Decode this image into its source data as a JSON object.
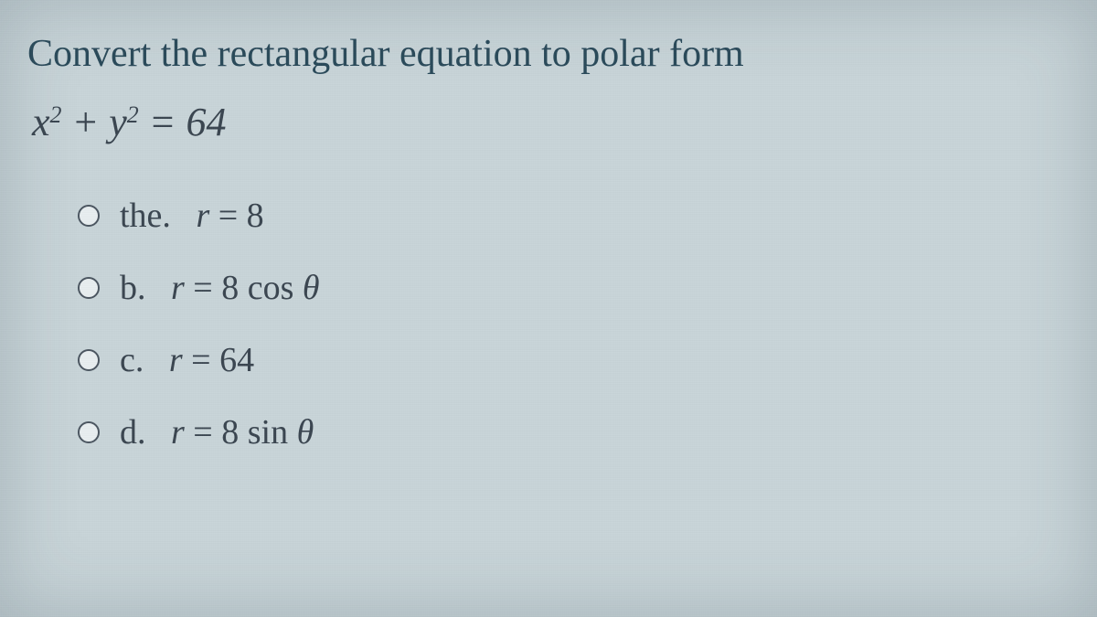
{
  "prompt": "Convert the rectangular equation to polar form",
  "equation_html": "<span class=\"math\">x</span><sup>2</sup> + <span class=\"math\">y</span><sup>2</sup> = 64",
  "options": [
    {
      "key": "the.",
      "answer_html": "<span class=\"math\">r</span> = 8"
    },
    {
      "key": "b.",
      "answer_html": "<span class=\"math\">r</span> = 8 <span class=\"roman\">cos</span> <span class=\"math\">θ</span>"
    },
    {
      "key": "c.",
      "answer_html": "<span class=\"math\">r</span> = 64"
    },
    {
      "key": "d.",
      "answer_html": "<span class=\"math\">r</span> = 8 <span class=\"roman\">sin</span> <span class=\"math\">θ</span>"
    }
  ],
  "colors": {
    "background": "#c8d4d8",
    "prompt_text": "#2a4a5a",
    "math_text": "#3a4550",
    "radio_border": "#4a5560",
    "radio_fill": "#e8eef0"
  },
  "fonts": {
    "prompt_size_pt": 32,
    "equation_size_pt": 33,
    "option_size_pt": 28
  }
}
